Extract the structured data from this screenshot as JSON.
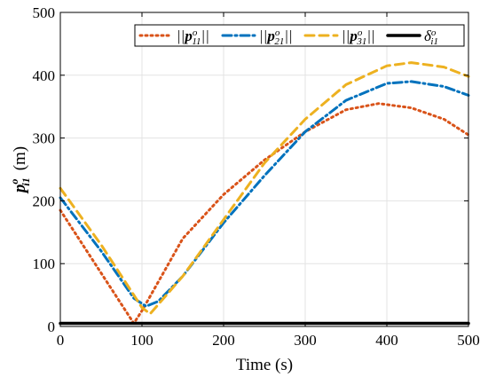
{
  "chart_data": {
    "type": "line",
    "xlabel": "Time (s)",
    "ylabel": "p_i1^o (m)",
    "xlim": [
      0,
      500
    ],
    "ylim": [
      0,
      500
    ],
    "xticks": [
      0,
      100,
      200,
      300,
      400,
      500
    ],
    "yticks": [
      0,
      100,
      200,
      300,
      400,
      500
    ],
    "grid": true,
    "legend_placement": "top-right, single row",
    "series": [
      {
        "name": "||p_11^o||",
        "style": "dotted",
        "color": "#D95319",
        "x": [
          0,
          90,
          100,
          150,
          200,
          250,
          300,
          350,
          390,
          430,
          470,
          500
        ],
        "values": [
          185,
          5,
          25,
          140,
          210,
          265,
          310,
          345,
          355,
          348,
          330,
          305
        ]
      },
      {
        "name": "||p_21^o||",
        "style": "dash-dot",
        "color": "#0072BD",
        "x": [
          0,
          50,
          90,
          105,
          120,
          150,
          200,
          250,
          300,
          350,
          400,
          430,
          470,
          500
        ],
        "values": [
          205,
          120,
          45,
          32,
          40,
          80,
          165,
          240,
          310,
          360,
          387,
          390,
          382,
          368
        ]
      },
      {
        "name": "||p_31^o||",
        "style": "dashed",
        "color": "#EDB120",
        "x": [
          0,
          50,
          90,
          100,
          110,
          150,
          200,
          250,
          300,
          350,
          400,
          430,
          470,
          500
        ],
        "values": [
          220,
          130,
          50,
          30,
          20,
          80,
          170,
          260,
          330,
          385,
          415,
          420,
          413,
          398
        ]
      },
      {
        "name": "δ_i1^o",
        "style": "solid",
        "color": "#000000",
        "x": [
          0,
          500
        ],
        "values": [
          5,
          5
        ]
      }
    ]
  }
}
